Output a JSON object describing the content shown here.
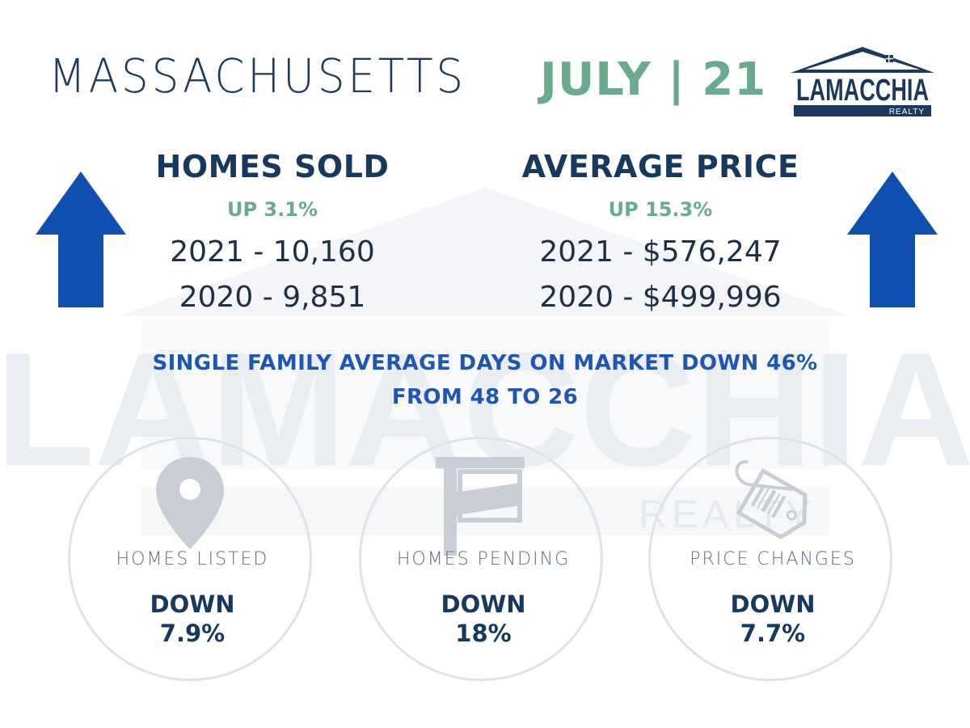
{
  "header": {
    "state": "MASSACHUSETTS",
    "date": "JULY | 21"
  },
  "logo": {
    "name": "LAMACCHIA",
    "sub": "REALTY",
    "color": "#1a3a5c"
  },
  "watermark": {
    "name": "LAMACCHIA",
    "sub": "REALTY"
  },
  "homes_sold": {
    "heading": "HOMES SOLD",
    "change": "UP 3.1%",
    "line_2021": "2021 - 10,160",
    "line_2020": "2020 - 9,851",
    "trend_icon": "up-arrow-icon"
  },
  "average_price": {
    "heading": "AVERAGE PRICE",
    "change": "UP 15.3%",
    "line_2021": "2021 - $576,247",
    "line_2020": "2020 - $499,996",
    "trend_icon": "up-arrow-icon"
  },
  "days_on_market": {
    "line1": "SINGLE FAMILY AVERAGE DAYS ON MARKET DOWN 46%",
    "line2": "FROM 48 TO 26"
  },
  "circles": [
    {
      "label": "HOMES LISTED",
      "direction": "DOWN",
      "value": "7.9%",
      "icon": "map-pin-icon"
    },
    {
      "label": "HOMES PENDING",
      "direction": "DOWN",
      "value": "18%",
      "icon": "sign-post-icon"
    },
    {
      "label": "PRICE CHANGES",
      "direction": "DOWN",
      "value": "7.7%",
      "icon": "price-tag-icon"
    }
  ],
  "colors": {
    "navy": "#18395e",
    "green": "#6aaa8e",
    "blue": "#1e56b3",
    "arrow": "#0f4fb0"
  }
}
